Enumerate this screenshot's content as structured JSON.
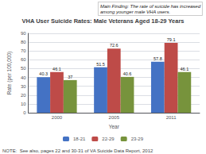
{
  "chart_data": {
    "type": "bar",
    "title": "VHA User Suicide Rates: Male Veterans Aged 18-29 Years",
    "xlabel": "Year",
    "ylabel": "Rate (per 100,000)",
    "categories": [
      "2000",
      "2005",
      "2011"
    ],
    "series": [
      {
        "name": "18-21",
        "color": "#4472C4",
        "values": [
          40.3,
          51.5,
          57.8
        ]
      },
      {
        "name": "22-29",
        "color": "#BE4B48",
        "values": [
          46.1,
          72.6,
          79.1
        ]
      },
      {
        "name": "23-29",
        "color": "#77933C",
        "values": [
          37.0,
          40.6,
          46.1
        ]
      }
    ],
    "ylim": [
      0,
      90
    ],
    "yticks": [
      0,
      10,
      20,
      30,
      40,
      50,
      60,
      70,
      80,
      90
    ],
    "grid": true,
    "legend": "bottom",
    "data_labels": true,
    "annotations": [
      "Main Finding: The rate of suicide has increased\namong younger male VHA users.",
      "NOTE:  See also, pages 22 and 30-31 of VA Suicide Data Report, 2012"
    ]
  }
}
